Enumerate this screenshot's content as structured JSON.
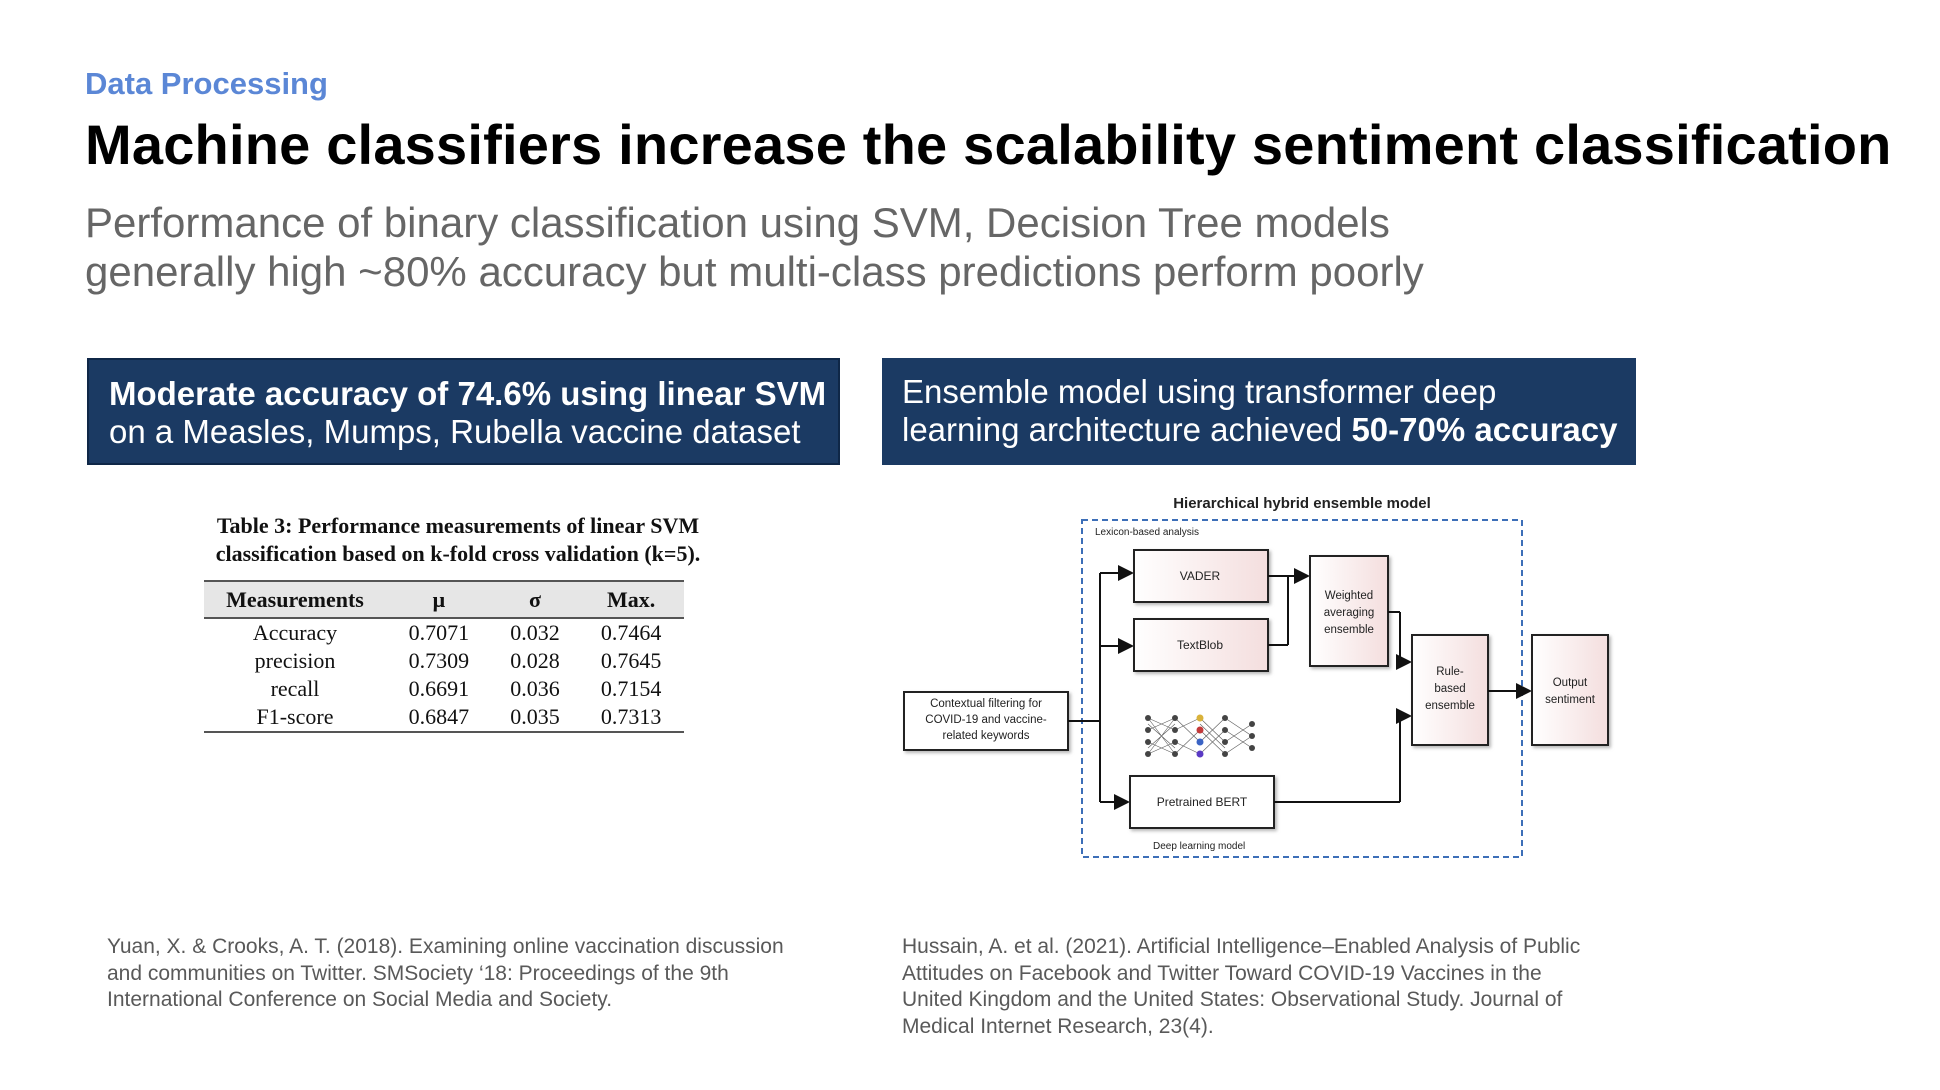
{
  "header": {
    "section_label": "Data Processing",
    "title": "Machine classifiers increase the scalability sentiment classification",
    "subtitle_lines": [
      "Performance of binary classification using SVM, Decision Tree models",
      "generally high ~80% accuracy but multi-class predictions perform poorly"
    ]
  },
  "left_box": {
    "line1_bold": "Moderate accuracy of 74.6% using linear SVM",
    "line2": "on a Measles, Mumps, Rubella vaccine dataset"
  },
  "right_box": {
    "line1": "Ensemble model using transformer deep",
    "line2_prefix": "learning architecture achieved ",
    "line2_bold": "50-70% accuracy"
  },
  "table": {
    "caption_lines": [
      "Table 3: Performance measurements of linear SVM",
      "classification based on k-fold cross validation (k=5)."
    ],
    "headers": [
      "Measurements",
      "μ",
      "σ",
      "Max."
    ],
    "rows": [
      [
        "Accuracy",
        "0.7071",
        "0.032",
        "0.7464"
      ],
      [
        "precision",
        "0.7309",
        "0.028",
        "0.7645"
      ],
      [
        "recall",
        "0.6691",
        "0.036",
        "0.7154"
      ],
      [
        "F1-score",
        "0.6847",
        "0.035",
        "0.7313"
      ]
    ]
  },
  "diagram": {
    "title": "Hierarchical hybrid ensemble model",
    "lexicon_label": "Lexicon-based analysis",
    "deep_label": "Deep learning model",
    "input_lines": [
      "Contextual filtering  for",
      "COVID-19 and vaccine-",
      "related keywords"
    ],
    "vader": "VADER",
    "textblob": "TextBlob",
    "bert": "Pretrained BERT",
    "weighted_lines": [
      "Weighted",
      "averaging",
      "ensemble"
    ],
    "rule_lines": [
      "Rule-",
      "based",
      "ensemble"
    ],
    "output_lines": [
      "Output",
      "sentiment"
    ]
  },
  "citations": {
    "left_lines": [
      "Yuan, X. & Crooks, A. T. (2018). Examining online vaccination discussion",
      "and communities on Twitter. SMSociety ‘18: Proceedings of the 9th",
      "International Conference on Social Media and Society."
    ],
    "right_lines": [
      "Hussain, A. et al. (2021). Artificial Intelligence–Enabled Analysis of Public",
      "Attitudes on Facebook and Twitter Toward COVID-19 Vaccines in the",
      "United Kingdom and the United States: Observational Study. Journal of",
      "Medical Internet Research, 23(4)."
    ]
  },
  "colors": {
    "accent": "#5b87d6",
    "box_bg": "#1b3a63",
    "subtitle_gray": "#666666",
    "citation_gray": "#595959"
  }
}
